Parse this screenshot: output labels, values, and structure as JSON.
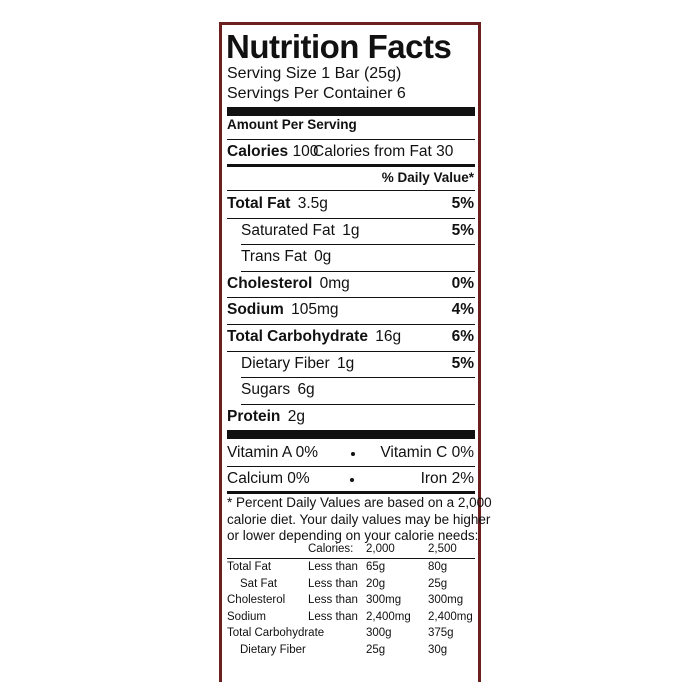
{
  "label": {
    "title": "Nutrition Facts",
    "serving_size": "Serving Size 1 Bar (25g)",
    "servings_per_container": "Servings Per Container 6",
    "amount_per_serving": "Amount Per Serving",
    "calories": {
      "label": "Calories",
      "value": "100",
      "from_fat": "Calories from Fat 30"
    },
    "daily_value_header": "% Daily Value*",
    "nutrients": [
      {
        "name": "Total Fat",
        "amount": "3.5g",
        "dv": "5%",
        "sub": [
          {
            "name": "Saturated Fat",
            "amount": "1g",
            "dv": "5%"
          },
          {
            "name": "Trans Fat",
            "amount": "0g"
          }
        ]
      },
      {
        "name": "Cholesterol",
        "amount": "0mg",
        "dv": "0%"
      },
      {
        "name": "Sodium",
        "amount": "105mg",
        "dv": "4%"
      },
      {
        "name": "Total Carbohydrate",
        "amount": "16g",
        "dv": "6%",
        "sub": [
          {
            "name": "Dietary Fiber",
            "amount": "1g",
            "dv": "5%"
          },
          {
            "name": "Sugars",
            "amount": "6g"
          }
        ]
      },
      {
        "name": "Protein",
        "amount": "2g"
      }
    ],
    "vitamins": [
      [
        {
          "name": "Vitamin A",
          "value": "0%"
        },
        {
          "name": "Vitamin C",
          "value": "0%"
        }
      ],
      [
        {
          "name": "Calcium",
          "value": "0%"
        },
        {
          "name": "Iron",
          "value": "2%"
        }
      ]
    ],
    "footnote": [
      "* Percent Daily Values are based on a 2,000",
      "calorie diet. Your daily values may be higher",
      "or lower depending on your calorie needs:"
    ],
    "reference_table": {
      "header": [
        "Calories:",
        "2,000",
        "2,500"
      ],
      "rows": [
        {
          "name": "Total Fat",
          "limit": "Less than",
          "values": [
            "65g",
            "80g"
          ]
        },
        {
          "name": "Sat Fat",
          "limit": "Less than",
          "values": [
            "20g",
            "25g"
          ],
          "sub": true
        },
        {
          "name": "Cholesterol",
          "limit": "Less than",
          "values": [
            "300mg",
            "300mg"
          ]
        },
        {
          "name": "Sodium",
          "limit": "Less than",
          "values": [
            "2,400mg",
            "2,400mg"
          ]
        },
        {
          "name": "Total Carbohydrate",
          "values": [
            "300g",
            "375g"
          ]
        },
        {
          "name": "Dietary Fiber",
          "values": [
            "25g",
            "30g"
          ],
          "sub": true
        }
      ]
    }
  }
}
